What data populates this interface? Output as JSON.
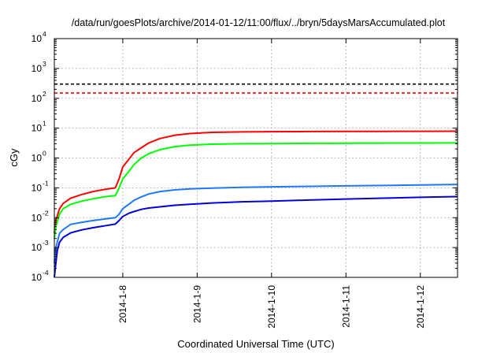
{
  "chart_data": {
    "type": "line",
    "title": "/data/run/goesPlots/archive/2014-01-12/11:00/flux/../bryn/5daysMarsAccumulated.plot",
    "xlabel": "Coordinated Universal Time (UTC)",
    "ylabel": "cGy",
    "yscale": "log",
    "ylim": [
      0.0001,
      10000
    ],
    "xlim": [
      7.08,
      12.5
    ],
    "y_ticks": [
      {
        "base": "10",
        "exp": "-4",
        "value": 0.0001
      },
      {
        "base": "10",
        "exp": "-3",
        "value": 0.001
      },
      {
        "base": "10",
        "exp": "-2",
        "value": 0.01
      },
      {
        "base": "10",
        "exp": "-1",
        "value": 0.1
      },
      {
        "base": "10",
        "exp": "0",
        "value": 1
      },
      {
        "base": "10",
        "exp": "1",
        "value": 10
      },
      {
        "base": "10",
        "exp": "2",
        "value": 100
      },
      {
        "base": "10",
        "exp": "3",
        "value": 1000
      },
      {
        "base": "10",
        "exp": "4",
        "value": 10000
      }
    ],
    "x_ticks": [
      {
        "label": "2014-1-8",
        "value": 8
      },
      {
        "label": "2014-1-9",
        "value": 9
      },
      {
        "label": "2014-1-10",
        "value": 10
      },
      {
        "label": "2014-1-11",
        "value": 11
      },
      {
        "label": "2014-1-12",
        "value": 12
      }
    ],
    "grid": true,
    "reference_lines": [
      {
        "value": 300,
        "color": "#000000",
        "style": "dashed"
      },
      {
        "value": 150,
        "color": "#ff0000",
        "style": "dashed"
      }
    ],
    "series": [
      {
        "color": "#ff0000",
        "x": [
          7.08,
          7.1,
          7.15,
          7.2,
          7.3,
          7.45,
          7.6,
          7.75,
          7.9,
          7.95,
          8.0,
          8.08,
          8.15,
          8.25,
          8.35,
          8.5,
          8.7,
          8.9,
          9.2,
          9.6,
          10.0,
          10.5,
          11.0,
          11.5,
          12.0,
          12.5
        ],
        "y": [
          0.003,
          0.008,
          0.02,
          0.03,
          0.045,
          0.06,
          0.075,
          0.088,
          0.1,
          0.2,
          0.5,
          0.9,
          1.5,
          2.2,
          3.2,
          4.5,
          5.8,
          6.6,
          7.2,
          7.5,
          7.6,
          7.7,
          7.75,
          7.8,
          7.85,
          7.9
        ]
      },
      {
        "color": "#00ff00",
        "x": [
          7.08,
          7.1,
          7.15,
          7.2,
          7.3,
          7.45,
          7.6,
          7.75,
          7.9,
          7.95,
          8.0,
          8.08,
          8.15,
          8.25,
          8.35,
          8.5,
          8.7,
          8.9,
          9.2,
          9.6,
          10.0,
          10.5,
          11.0,
          11.5,
          12.0,
          12.5
        ],
        "y": [
          0.002,
          0.005,
          0.013,
          0.02,
          0.028,
          0.036,
          0.043,
          0.05,
          0.055,
          0.1,
          0.2,
          0.35,
          0.6,
          1.0,
          1.4,
          1.9,
          2.4,
          2.7,
          2.9,
          3.0,
          3.05,
          3.1,
          3.12,
          3.15,
          3.17,
          3.2
        ]
      },
      {
        "color": "#1e78ff",
        "x": [
          7.08,
          7.1,
          7.15,
          7.2,
          7.3,
          7.45,
          7.6,
          7.75,
          7.9,
          7.95,
          8.0,
          8.08,
          8.15,
          8.25,
          8.35,
          8.5,
          8.7,
          8.9,
          9.2,
          9.6,
          10.0,
          10.5,
          11.0,
          11.5,
          12.0,
          12.5
        ],
        "y": [
          0.0003,
          0.001,
          0.003,
          0.004,
          0.006,
          0.007,
          0.008,
          0.009,
          0.01,
          0.013,
          0.02,
          0.028,
          0.038,
          0.05,
          0.062,
          0.075,
          0.085,
          0.092,
          0.098,
          0.104,
          0.108,
          0.112,
          0.116,
          0.12,
          0.125,
          0.13
        ]
      },
      {
        "color": "#0000dd",
        "x": [
          7.08,
          7.1,
          7.12,
          7.15,
          7.2,
          7.3,
          7.45,
          7.6,
          7.75,
          7.9,
          7.95,
          8.0,
          8.08,
          8.15,
          8.25,
          8.35,
          8.5,
          8.7,
          8.9,
          9.2,
          9.6,
          10.0,
          10.5,
          11.0,
          11.5,
          12.0,
          12.5
        ],
        "y": [
          0.0001,
          0.0003,
          0.0008,
          0.0015,
          0.0022,
          0.0031,
          0.0039,
          0.0046,
          0.0053,
          0.0061,
          0.008,
          0.011,
          0.014,
          0.016,
          0.019,
          0.021,
          0.023,
          0.026,
          0.028,
          0.031,
          0.034,
          0.036,
          0.039,
          0.042,
          0.045,
          0.048,
          0.051
        ]
      }
    ]
  }
}
